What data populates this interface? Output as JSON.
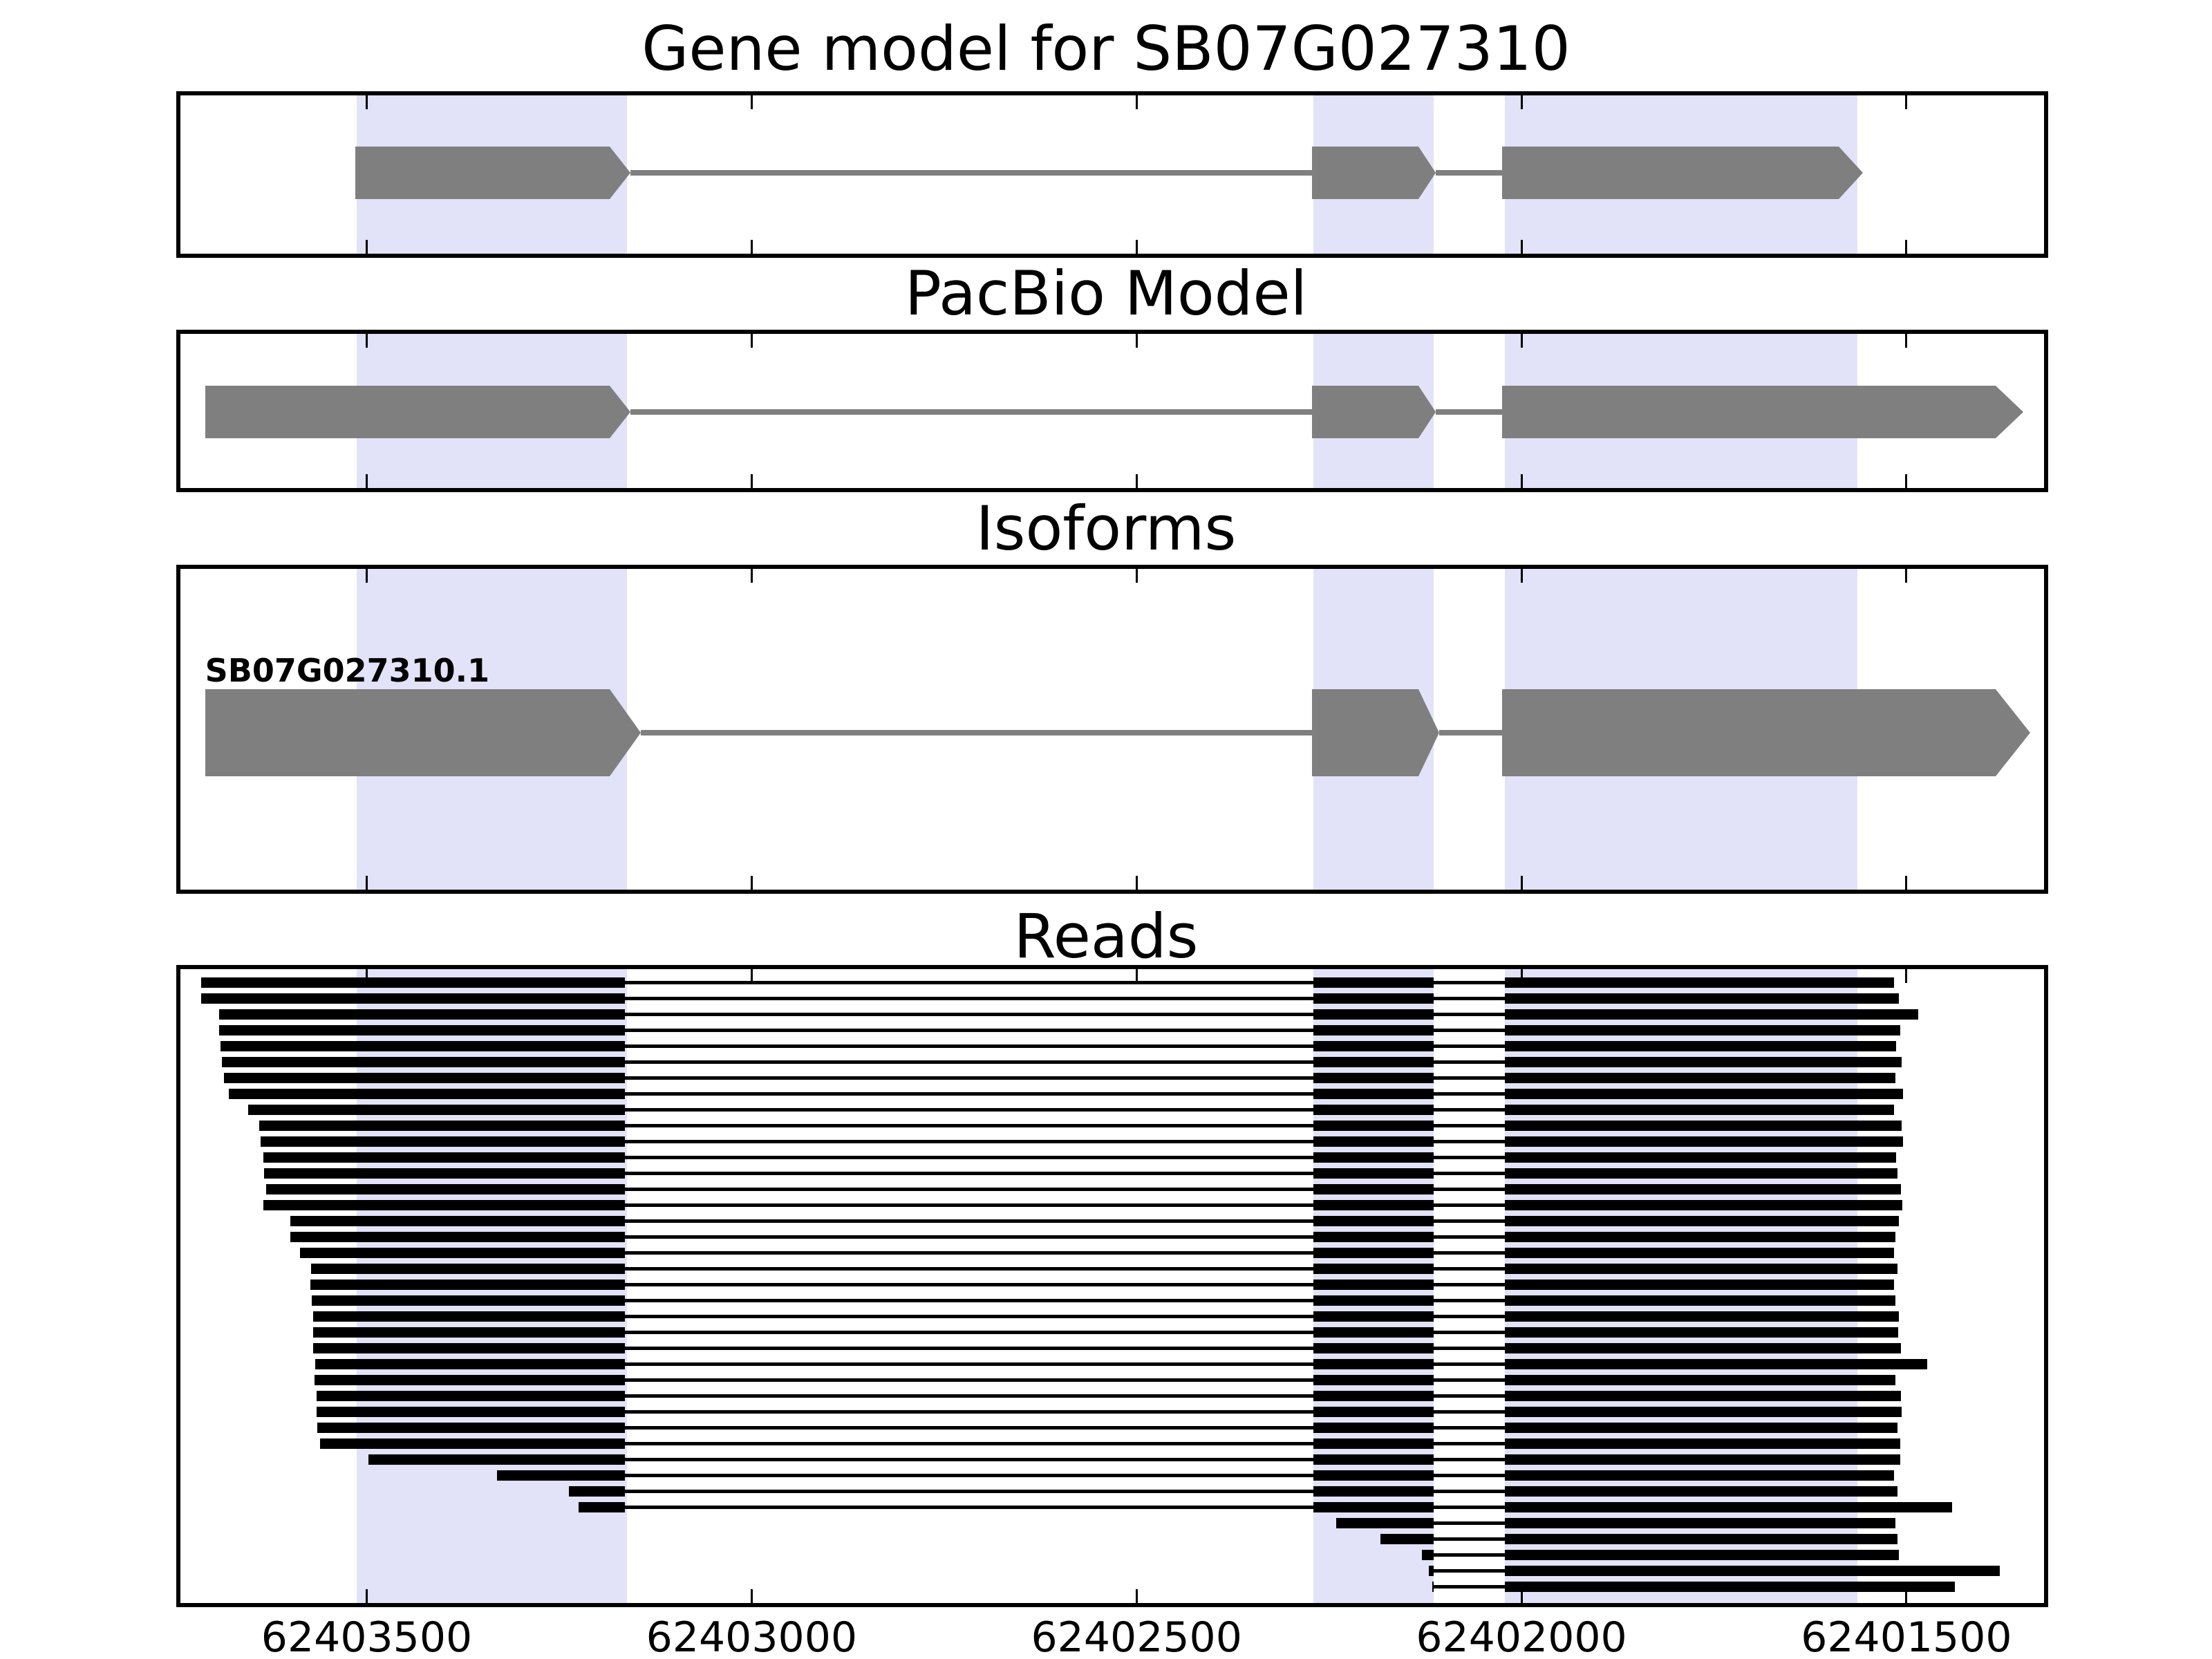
{
  "titles": {
    "gene_model": "Gene model for SB07G027310",
    "pacbio": "PacBio Model",
    "isoforms": "Isoforms",
    "reads": "Reads"
  },
  "colors": {
    "exon_fill": "#7f7f7f",
    "intron_line": "#7f7f7f",
    "read_color": "#000000",
    "highlight_band": "#e2e2f8",
    "panel_border": "#000000",
    "background": "#ffffff",
    "text": "#000000"
  },
  "chart_data": {
    "type": "other",
    "subtype": "genome-gene-model-tracks",
    "title": "Gene model for SB07G027310",
    "track_titles": [
      "Gene model for SB07G027310",
      "PacBio Model",
      "Isoforms",
      "Reads"
    ],
    "x_axis": {
      "left_value": 62403742,
      "right_value": 62401332,
      "direction": "decreasing",
      "tick_values": [
        62403500,
        62403000,
        62402500,
        62402000,
        62401500
      ],
      "tick_labels": [
        "62403500",
        "62403000",
        "62402500",
        "62402000",
        "62401500"
      ]
    },
    "highlight_regions": [
      [
        62403513,
        62403162
      ],
      [
        62402270,
        62402114
      ],
      [
        62402022,
        62401564
      ]
    ],
    "gene_model_exons": [
      [
        62403515,
        62403184
      ],
      [
        62402272,
        62402134
      ],
      [
        62402025,
        62401588
      ]
    ],
    "pacbio_exons": [
      [
        62403710,
        62403184
      ],
      [
        62402272,
        62402134
      ],
      [
        62402025,
        62401384
      ]
    ],
    "isoforms": [
      {
        "label": "SB07G027310.1",
        "exons": [
          [
            62403710,
            62403184
          ],
          [
            62402272,
            62402134
          ],
          [
            62402025,
            62401384
          ]
        ]
      }
    ],
    "read_exon_model": {
      "exon1_end": 62403165,
      "exon2": [
        62402270,
        62402114
      ],
      "exon3_start": 62402022
    },
    "reads": [
      [
        62403715,
        62401516
      ],
      [
        62403715,
        62401510
      ],
      [
        62403692,
        62401485
      ],
      [
        62403692,
        62401508
      ],
      [
        62403690,
        62401513
      ],
      [
        62403688,
        62401506
      ],
      [
        62403685,
        62401514
      ],
      [
        62403679,
        62401504
      ],
      [
        62403654,
        62401516
      ],
      [
        62403640,
        62401506
      ],
      [
        62403638,
        62401504
      ],
      [
        62403634,
        62401513
      ],
      [
        62403633,
        62401512
      ],
      [
        62403631,
        62401507
      ],
      [
        62403634,
        62401505
      ],
      [
        62403599,
        62401510
      ],
      [
        62403599,
        62401514
      ],
      [
        62403587,
        62401516
      ],
      [
        62403572,
        62401512
      ],
      [
        62403573,
        62401516
      ],
      [
        62403571,
        62401514
      ],
      [
        62403570,
        62401510
      ],
      [
        62403570,
        62401511
      ],
      [
        62403570,
        62401507
      ],
      [
        62403567,
        62401473
      ],
      [
        62403568,
        62401514
      ],
      [
        62403565,
        62401507
      ],
      [
        62403565,
        62401506
      ],
      [
        62403564,
        62401512
      ],
      [
        62403561,
        62401508
      ],
      [
        62403498,
        62401508
      ],
      [
        62403331,
        62401516
      ],
      [
        62403237,
        62401512
      ],
      [
        62403225,
        62401441
      ],
      [
        62402241,
        62401514
      ],
      [
        62402183,
        62401512
      ],
      [
        62402129,
        62401510
      ],
      [
        62402120,
        62401379
      ],
      [
        62402116,
        62401437
      ]
    ]
  }
}
